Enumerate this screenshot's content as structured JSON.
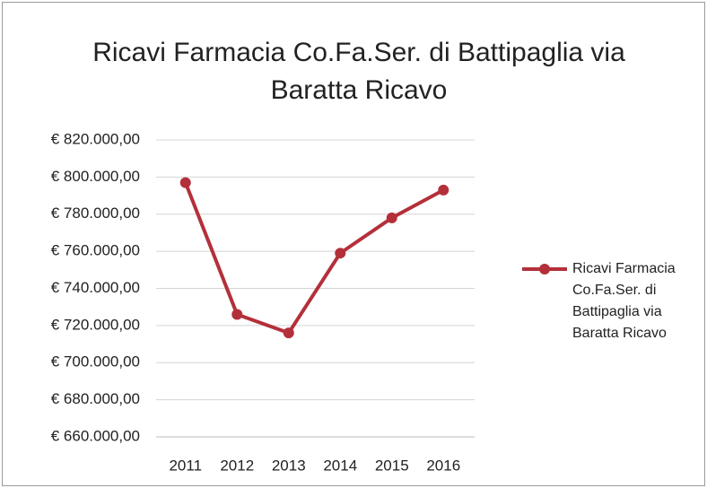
{
  "chart_data": {
    "type": "line",
    "title": "Ricavi Farmacia Co.Fa.Ser. di Battipaglia via Baratta Ricavo",
    "categories": [
      "2011",
      "2012",
      "2013",
      "2014",
      "2015",
      "2016"
    ],
    "series": [
      {
        "name": "Ricavi Farmacia Co.Fa.Ser. di Battipaglia via Baratta Ricavo",
        "color": "#b3303a",
        "values": [
          797000,
          726000,
          716000,
          759000,
          778000,
          793000
        ]
      }
    ],
    "ylim": [
      660000,
      820000
    ],
    "yticks": [
      {
        "value": 660000,
        "label": "€ 660.000,00"
      },
      {
        "value": 680000,
        "label": "€ 680.000,00"
      },
      {
        "value": 700000,
        "label": "€ 700.000,00"
      },
      {
        "value": 720000,
        "label": "€ 720.000,00"
      },
      {
        "value": 740000,
        "label": "€ 740.000,00"
      },
      {
        "value": 760000,
        "label": "€ 760.000,00"
      },
      {
        "value": 780000,
        "label": "€ 780.000,00"
      },
      {
        "value": 800000,
        "label": "€ 800.000,00"
      },
      {
        "value": 820000,
        "label": "€ 820.000,00"
      }
    ],
    "grid": true,
    "legend": "right"
  }
}
